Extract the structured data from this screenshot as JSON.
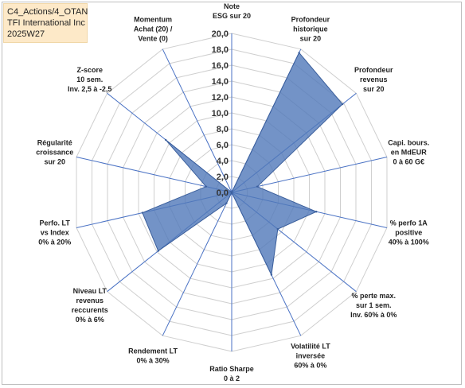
{
  "title_lines": [
    "C4_Actions/4_OTAN",
    "TFI International Inc",
    "2025W27"
  ],
  "chart_data": {
    "type": "radar",
    "rmax": 20,
    "ticks": [
      "0,0",
      "2,0",
      "4,0",
      "6,0",
      "8,0",
      "10,0",
      "12,0",
      "14,0",
      "16,0",
      "18,0",
      "20,0"
    ],
    "axes": [
      {
        "label": [
          "Note",
          "ESG sur 20"
        ],
        "value": 0
      },
      {
        "label": [
          "Profondeur",
          "historique",
          "sur 20"
        ],
        "value": 19.5
      },
      {
        "label": [
          "Profondeur",
          "revenus",
          "sur 20"
        ],
        "value": 17.8
      },
      {
        "label": [
          "Capi. bours.",
          "en MdEUR",
          "0 à 60 G€"
        ],
        "value": 3.3
      },
      {
        "label": [
          "% perfo 1A",
          "positive",
          "40% à 100%"
        ],
        "value": 10.9
      },
      {
        "label": [
          "% perte max.",
          "sur 1 sem.",
          "Inv. 60% à 0%"
        ],
        "value": 7.4
      },
      {
        "label": [
          "Volatilité LT",
          "inversée",
          "60% à 0%"
        ],
        "value": 11.5
      },
      {
        "label": [
          "Ratio Sharpe",
          "0 à 2"
        ],
        "value": 0
      },
      {
        "label": [
          "Rendement LT",
          "0% à 30%"
        ],
        "value": 1.5
      },
      {
        "label": [
          "Niveau LT",
          "revenus",
          "reccurents",
          "0% à 6%"
        ],
        "value": 11.8
      },
      {
        "label": [
          "Perfo. LT",
          "vs Index",
          "0% à 20%"
        ],
        "value": 11.5
      },
      {
        "label": [
          "Régularité",
          "croissance",
          "sur 20"
        ],
        "value": 3.3
      },
      {
        "label": [
          "Z-score",
          "10 sem.",
          "Inv. 2,5 à -2,5"
        ],
        "value": 10.6
      },
      {
        "label": [
          "Momentum",
          "Achat (20) /",
          "Vente (0)"
        ],
        "value": 0
      }
    ]
  }
}
